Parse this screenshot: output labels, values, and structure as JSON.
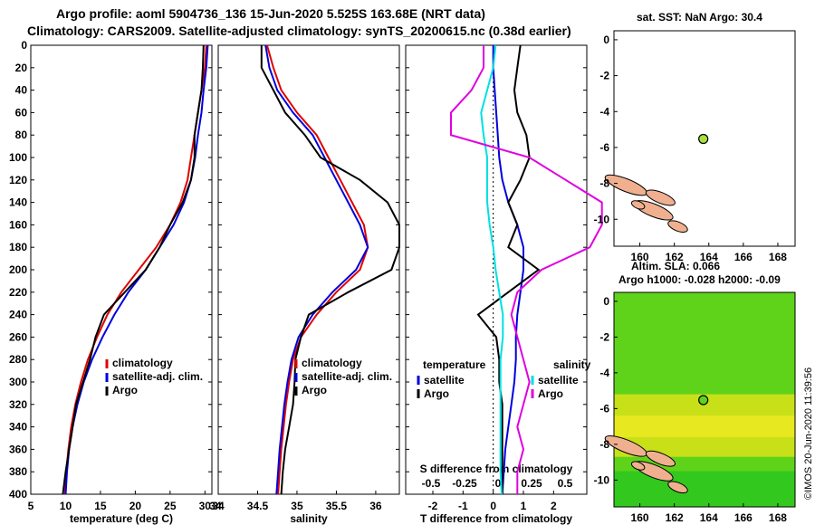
{
  "header": {
    "line1": "Argo profile: aoml 5904736_136 15-Jun-2020 5.525S 163.68E (NRT data)",
    "line2": "Climatology: CARS2009. Satellite-adjusted climatology: synTS_20200615.nc (0.38d earlier)"
  },
  "side_label": "©IMOS 20-Jun-2020 11:39:56",
  "colors": {
    "climatology": "#e00000",
    "satellite": "#0000dd",
    "argo": "#000000",
    "salinity_sat": "#00e0e0",
    "salinity_diff": "#e000e0",
    "land": "#f0b090"
  },
  "chart_data": [
    {
      "type": "line",
      "id": "temperature-profile",
      "xlabel": "temperature (deg C)",
      "ylabel": "",
      "xlim": [
        5,
        31
      ],
      "ylim": [
        400,
        0
      ],
      "reverse_y": true,
      "xticks": [
        5,
        10,
        15,
        20,
        25,
        30
      ],
      "yticks": [
        0,
        20,
        40,
        60,
        80,
        100,
        120,
        140,
        160,
        180,
        200,
        220,
        240,
        260,
        280,
        300,
        320,
        340,
        360,
        380,
        400
      ],
      "legend": [
        "climatology",
        "satellite-adj. clim.",
        "Argo"
      ],
      "series": [
        {
          "name": "climatology",
          "color": "#e00000",
          "x": [
            30.2,
            30.0,
            29.5,
            29.0,
            28.5,
            28.0,
            27.5,
            26.5,
            25.0,
            23.0,
            20.5,
            18.0,
            16.0,
            14.5,
            13.2,
            12.2,
            11.4,
            10.8,
            10.4,
            10.1,
            9.9
          ],
          "y": [
            0,
            20,
            40,
            60,
            80,
            100,
            120,
            140,
            160,
            180,
            200,
            220,
            240,
            260,
            280,
            300,
            320,
            340,
            360,
            380,
            400
          ]
        },
        {
          "name": "satellite-adj. clim.",
          "color": "#0000dd",
          "x": [
            30.4,
            30.2,
            29.8,
            29.5,
            29.0,
            28.6,
            28.0,
            27.0,
            25.5,
            23.5,
            21.5,
            19.0,
            17.0,
            15.3,
            13.8,
            12.6,
            11.7,
            11.0,
            10.5,
            10.2,
            10.0
          ],
          "y": [
            0,
            20,
            40,
            60,
            80,
            100,
            120,
            140,
            160,
            180,
            200,
            220,
            240,
            260,
            280,
            300,
            320,
            340,
            360,
            380,
            400
          ]
        },
        {
          "name": "Argo",
          "color": "#000000",
          "x": [
            29.8,
            29.7,
            29.5,
            29.0,
            28.5,
            28.5,
            28.0,
            26.8,
            25.0,
            23.5,
            21.5,
            18.5,
            15.5,
            14.3,
            13.5,
            12.5,
            11.5,
            11.0,
            10.5,
            10.0,
            9.6
          ],
          "y": [
            0,
            20,
            40,
            60,
            80,
            100,
            120,
            140,
            160,
            180,
            200,
            220,
            240,
            260,
            280,
            300,
            320,
            340,
            360,
            380,
            400
          ]
        }
      ]
    },
    {
      "type": "line",
      "id": "salinity-profile",
      "xlabel": "salinity",
      "ylabel": "",
      "xlim": [
        34,
        36.3
      ],
      "ylim": [
        400,
        0
      ],
      "reverse_y": true,
      "xticks": [
        34,
        34.5,
        35,
        35.5,
        36
      ],
      "yticks": [],
      "legend": [
        "climatology",
        "satellite-adj. clim.",
        "Argo"
      ],
      "series": [
        {
          "name": "climatology",
          "color": "#e00000",
          "x": [
            34.62,
            34.7,
            34.8,
            35.0,
            35.25,
            35.4,
            35.55,
            35.7,
            35.85,
            35.9,
            35.8,
            35.5,
            35.25,
            35.05,
            34.95,
            34.9,
            34.86,
            34.83,
            34.8,
            34.78,
            34.76
          ],
          "y": [
            0,
            20,
            40,
            60,
            80,
            100,
            120,
            140,
            160,
            180,
            200,
            220,
            240,
            260,
            280,
            300,
            320,
            340,
            360,
            380,
            400
          ]
        },
        {
          "name": "satellite-adj. clim.",
          "color": "#0000dd",
          "x": [
            34.6,
            34.65,
            34.75,
            34.95,
            35.2,
            35.35,
            35.5,
            35.65,
            35.8,
            35.9,
            35.75,
            35.45,
            35.2,
            35.02,
            34.93,
            34.88,
            34.84,
            34.81,
            34.78,
            34.76,
            34.74
          ],
          "y": [
            0,
            20,
            40,
            60,
            80,
            100,
            120,
            140,
            160,
            180,
            200,
            220,
            240,
            260,
            280,
            300,
            320,
            340,
            360,
            380,
            400
          ]
        },
        {
          "name": "Argo",
          "color": "#000000",
          "x": [
            34.55,
            34.55,
            34.7,
            34.85,
            35.1,
            35.3,
            35.8,
            36.15,
            36.3,
            36.3,
            36.2,
            35.65,
            35.15,
            35.05,
            34.98,
            34.97,
            34.95,
            34.9,
            34.85,
            34.82,
            34.8
          ],
          "y": [
            0,
            20,
            40,
            60,
            80,
            100,
            120,
            140,
            160,
            180,
            200,
            220,
            240,
            260,
            280,
            300,
            320,
            340,
            360,
            380,
            400
          ]
        }
      ]
    },
    {
      "type": "line",
      "id": "difference-profile",
      "xlabel": "T difference from climatology",
      "x2label": "S difference from climatology",
      "xlim": [
        -2.9,
        3.1
      ],
      "ylim": [
        400,
        0
      ],
      "reverse_y": true,
      "xticks": [
        -2,
        -1,
        0,
        1,
        2
      ],
      "x2ticks": [
        -0.5,
        -0.25,
        0,
        0.25,
        0.5
      ],
      "legend_left_title": "temperature",
      "legend_right_title": "salinity",
      "legend_left": [
        "satellite",
        "Argo"
      ],
      "legend_right": [
        "satellite",
        "Argo"
      ],
      "series": [
        {
          "name": "T satellite",
          "color": "#0000dd",
          "x": [
            0.0,
            0.0,
            0.05,
            0.1,
            0.15,
            0.2,
            0.3,
            0.5,
            0.8,
            1.0,
            1.0,
            0.9,
            0.8,
            0.75,
            0.75,
            0.7,
            0.6,
            0.5,
            0.4,
            0.35,
            0.3
          ],
          "y": [
            0,
            20,
            40,
            60,
            80,
            100,
            120,
            140,
            160,
            180,
            200,
            220,
            240,
            260,
            280,
            300,
            320,
            340,
            360,
            380,
            400
          ]
        },
        {
          "name": "T Argo",
          "color": "#000000",
          "x": [
            0.9,
            0.8,
            0.7,
            0.8,
            1.1,
            1.2,
            0.9,
            0.5,
            0.8,
            0.5,
            1.5,
            0.5,
            -0.5,
            0.1,
            0.2,
            0.2,
            0.3,
            0.3,
            0.3,
            0.3,
            0.3
          ],
          "y": [
            0,
            20,
            40,
            60,
            80,
            100,
            120,
            140,
            160,
            180,
            200,
            220,
            240,
            260,
            280,
            300,
            320,
            340,
            360,
            380,
            400
          ]
        },
        {
          "name": "S satellite",
          "color": "#00e0e0",
          "x": [
            0.02,
            0.0,
            -0.05,
            -0.1,
            -0.08,
            -0.05,
            -0.05,
            -0.05,
            -0.03,
            0.0,
            0.02,
            0.05,
            0.08,
            0.08,
            0.06,
            0.06,
            0.06,
            0.06,
            0.06,
            0.06,
            0.07
          ],
          "y": [
            0,
            20,
            40,
            60,
            80,
            100,
            120,
            140,
            160,
            180,
            200,
            220,
            240,
            260,
            280,
            300,
            320,
            340,
            360,
            380,
            400
          ]
        },
        {
          "name": "S Argo",
          "color": "#e000e0",
          "x": [
            -0.08,
            -0.08,
            -0.18,
            -0.35,
            -0.35,
            0.3,
            0.6,
            0.9,
            0.9,
            0.8,
            0.4,
            0.2,
            0.15,
            0.2,
            0.25,
            0.3,
            0.25,
            0.2,
            0.25,
            0.2,
            0.2
          ],
          "y": [
            0,
            20,
            40,
            60,
            80,
            100,
            120,
            140,
            160,
            180,
            200,
            220,
            240,
            260,
            280,
            300,
            320,
            340,
            360,
            380,
            400
          ]
        }
      ]
    },
    {
      "type": "map",
      "id": "sst-map",
      "title": "sat. SST: NaN Argo: 30.4",
      "xlim": [
        158.5,
        169
      ],
      "ylim": [
        -11.5,
        0.5
      ],
      "xticks": [
        160,
        162,
        164,
        166,
        168
      ],
      "yticks": [
        0,
        -2,
        -4,
        -6,
        -8,
        -10
      ],
      "argo_position": [
        163.68,
        -5.525
      ]
    },
    {
      "type": "heatmap",
      "id": "sla-map",
      "title": "Altim. SLA: 0.066",
      "subtitle": "Argo h1000: -0.028 h2000: -0.09",
      "xlim": [
        158.5,
        169
      ],
      "ylim": [
        -11.5,
        0.5
      ],
      "xticks": [
        160,
        162,
        164,
        166,
        168
      ],
      "yticks": [
        0,
        -2,
        -4,
        -6,
        -8,
        -10
      ],
      "argo_position": [
        163.68,
        -5.525
      ]
    }
  ]
}
